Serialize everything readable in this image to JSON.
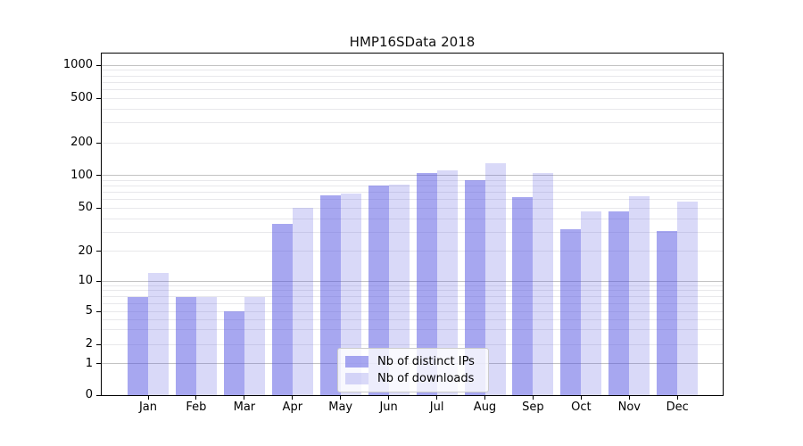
{
  "title": "HMP16SData 2018",
  "legend": {
    "items": [
      {
        "label": "Nb of distinct IPs",
        "series": "ips"
      },
      {
        "label": "Nb of downloads",
        "series": "downloads"
      }
    ]
  },
  "colors": {
    "ips_fill": "rgba(80,80,225,0.5)",
    "downloads_fill": "rgba(80,80,225,0.22)",
    "grid_major": "#c3c3c3",
    "grid_minor": "#e8e8eb",
    "axis": "#000000",
    "background": "#ffffff"
  },
  "y_axis": {
    "tick_labels": [
      "0",
      "1",
      "2",
      "5",
      "10",
      "20",
      "50",
      "100",
      "200",
      "500",
      "1000"
    ]
  },
  "chart_data": {
    "type": "bar",
    "title": "HMP16SData 2018",
    "categories": [
      "Jan 2018",
      "Feb 2018",
      "Mar 2018",
      "Apr 2018",
      "May 2018",
      "Jun 2018",
      "Jul 2018",
      "Aug 2018",
      "Sep 2018",
      "Oct 2018",
      "Nov 2018",
      "Dec 2018"
    ],
    "series": [
      {
        "name": "Nb of distinct IPs",
        "key": "ips",
        "values": [
          7,
          7,
          5,
          36,
          66,
          80,
          104,
          90,
          63,
          32,
          47,
          31
        ]
      },
      {
        "name": "Nb of downloads",
        "key": "downloads",
        "values": [
          12,
          7,
          7,
          50,
          68,
          82,
          111,
          130,
          104,
          47,
          64,
          57
        ]
      }
    ],
    "yscale": "symlog",
    "yticks": [
      0,
      1,
      2,
      5,
      10,
      20,
      50,
      100,
      200,
      500,
      1000
    ],
    "ylim": [
      0,
      1300
    ],
    "grid": true,
    "legend_position": "lower center"
  }
}
